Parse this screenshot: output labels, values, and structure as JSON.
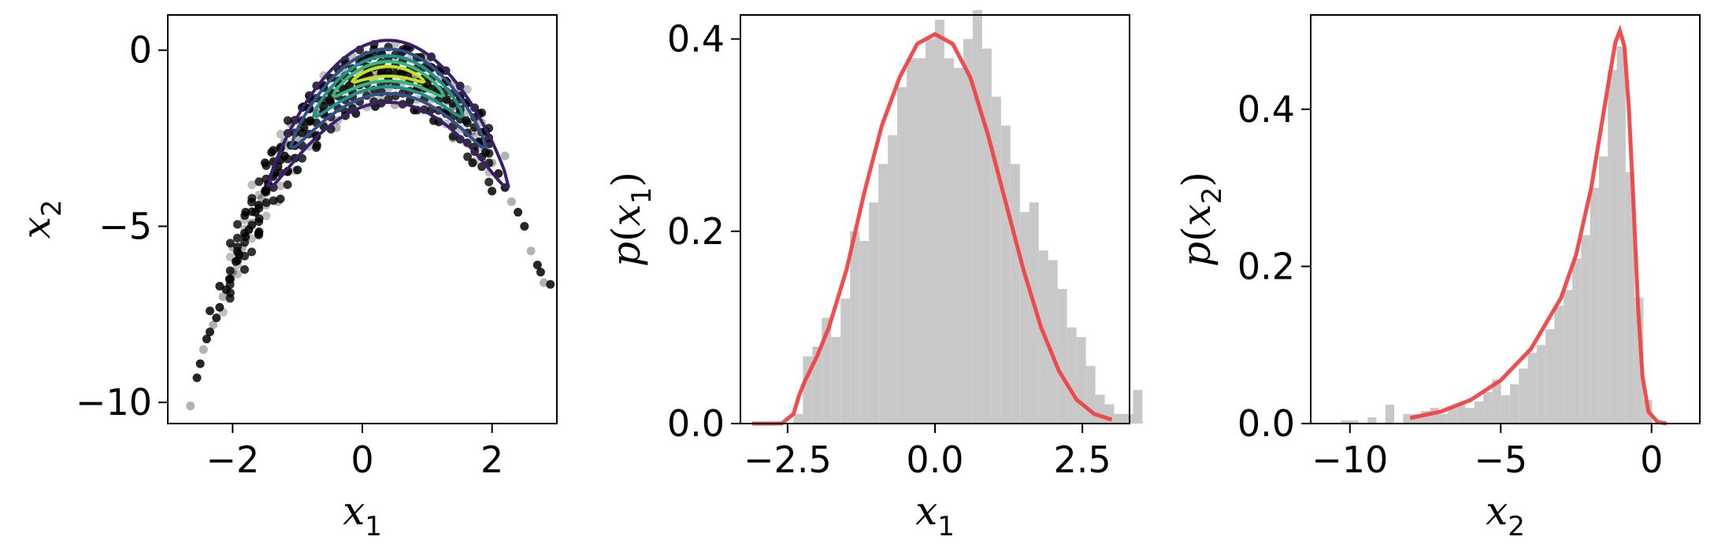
{
  "chart_data": [
    {
      "type": "scatter",
      "xlabel": "x",
      "xlabel_sub": "1",
      "ylabel": "x",
      "ylabel_sub": "2",
      "xlim": [
        -3.0,
        3.0
      ],
      "ylim": [
        -10.6,
        1.0
      ],
      "xticks": [
        -2,
        0,
        2
      ],
      "xtick_labels": [
        "−2",
        "0",
        "2"
      ],
      "yticks": [
        0,
        -5,
        -10
      ],
      "ytick_labels": [
        "0",
        "−5",
        "−10"
      ],
      "point_color": "#000000",
      "contour_colors": [
        "#3b1f6e",
        "#33508c",
        "#21918c",
        "#35b779",
        "#c5e021"
      ],
      "contour_half_widths": [
        1.6,
        1.15,
        0.8,
        0.5,
        0.25
      ],
      "contour_x_extent": [
        1.85,
        1.5,
        1.15,
        0.85,
        0.55
      ],
      "contour_center": [
        0.4,
        -0.6
      ],
      "curve": "x2 = -(x1 - 0.4)^2 * 0.95 - 0.6",
      "points": [
        [
          -2.65,
          -10.1
        ],
        [
          -2.55,
          -9.3
        ],
        [
          -2.5,
          -8.9
        ],
        [
          -2.45,
          -8.5
        ],
        [
          -2.4,
          -8.2
        ],
        [
          -2.35,
          -8.0
        ],
        [
          -2.3,
          -7.8
        ],
        [
          -2.25,
          -7.6
        ],
        [
          -2.2,
          -7.3
        ],
        [
          -2.15,
          -7.0
        ],
        [
          -2.1,
          -6.8
        ],
        [
          -2.05,
          -6.5
        ],
        [
          -2.0,
          -6.3
        ],
        [
          -1.95,
          -6.0
        ],
        [
          -1.9,
          -5.8
        ],
        [
          -1.85,
          -5.6
        ],
        [
          -1.8,
          -5.3
        ],
        [
          -1.75,
          -5.1
        ],
        [
          -1.7,
          -4.9
        ],
        [
          -1.65,
          -4.6
        ],
        [
          -1.6,
          -4.4
        ],
        [
          -1.55,
          -4.2
        ],
        [
          -1.5,
          -4.0
        ],
        [
          -1.45,
          -3.8
        ],
        [
          -1.4,
          -3.6
        ],
        [
          -1.35,
          -3.5
        ],
        [
          -1.3,
          -3.3
        ],
        [
          -1.25,
          -3.1
        ],
        [
          -1.2,
          -3.0
        ],
        [
          -1.1,
          -2.7
        ],
        [
          -1.0,
          -2.5
        ],
        [
          -0.9,
          -2.2
        ],
        [
          -0.8,
          -2.0
        ],
        [
          -0.7,
          -1.8
        ],
        [
          -0.6,
          -1.6
        ],
        [
          -0.5,
          -1.4
        ],
        [
          -0.4,
          -1.2
        ],
        [
          -0.3,
          -1.1
        ],
        [
          -0.2,
          -1.0
        ],
        [
          -0.1,
          -0.9
        ],
        [
          0.0,
          -0.8
        ],
        [
          0.1,
          -0.7
        ],
        [
          0.2,
          -0.65
        ],
        [
          0.3,
          -0.6
        ],
        [
          0.4,
          -0.6
        ],
        [
          0.5,
          -0.62
        ],
        [
          0.6,
          -0.65
        ],
        [
          0.7,
          -0.7
        ],
        [
          0.8,
          -0.78
        ],
        [
          0.9,
          -0.86
        ],
        [
          1.0,
          -0.95
        ],
        [
          1.1,
          -1.1
        ],
        [
          1.2,
          -1.25
        ],
        [
          1.3,
          -1.4
        ],
        [
          1.4,
          -1.6
        ],
        [
          1.5,
          -1.8
        ],
        [
          1.6,
          -2.0
        ],
        [
          1.7,
          -2.3
        ],
        [
          1.8,
          -2.6
        ],
        [
          1.9,
          -2.9
        ],
        [
          2.0,
          -3.2
        ],
        [
          2.1,
          -3.5
        ],
        [
          2.2,
          -3.9
        ],
        [
          2.3,
          -4.3
        ],
        [
          2.4,
          -4.6
        ],
        [
          2.5,
          -5.0
        ],
        [
          2.6,
          -5.7
        ],
        [
          2.7,
          -6.1
        ],
        [
          2.75,
          -6.3
        ],
        [
          2.8,
          -6.6
        ],
        [
          2.9,
          -6.65
        ],
        [
          -1.5,
          -3.2
        ],
        [
          -1.2,
          -2.6
        ],
        [
          -0.9,
          -1.6
        ],
        [
          -0.6,
          -1.0
        ],
        [
          -0.3,
          -0.5
        ],
        [
          0.0,
          -0.3
        ],
        [
          0.3,
          -0.1
        ],
        [
          0.6,
          -0.05
        ],
        [
          0.9,
          -0.2
        ],
        [
          1.2,
          -0.6
        ],
        [
          1.5,
          -1.2
        ],
        [
          1.8,
          -1.8
        ],
        [
          -1.6,
          -5.2
        ],
        [
          -1.3,
          -4.3
        ],
        [
          -1.0,
          -3.4
        ],
        [
          -0.7,
          -2.7
        ],
        [
          -0.4,
          -2.2
        ],
        [
          -0.1,
          -1.8
        ],
        [
          0.2,
          -1.6
        ],
        [
          0.5,
          -1.55
        ],
        [
          0.8,
          -1.7
        ],
        [
          1.1,
          -2.0
        ],
        [
          1.4,
          -2.5
        ],
        [
          1.7,
          -3.2
        ],
        [
          2.0,
          -4.0
        ],
        [
          -0.5,
          -0.8
        ],
        [
          0.1,
          -0.2
        ],
        [
          0.7,
          0.1
        ],
        [
          1.0,
          -0.35
        ],
        [
          1.3,
          -0.9
        ],
        [
          1.6,
          -1.5
        ],
        [
          -1.1,
          -2.1
        ],
        [
          -0.8,
          -1.4
        ],
        [
          -1.4,
          -2.9
        ],
        [
          2.2,
          -3.0
        ],
        [
          1.9,
          -2.3
        ],
        [
          -1.8,
          -4.6
        ],
        [
          -2.0,
          -5.6
        ],
        [
          -2.2,
          -6.7
        ],
        [
          -2.35,
          -7.4
        ]
      ]
    },
    {
      "type": "bar",
      "xlabel": "x",
      "xlabel_sub": "1",
      "ylabel": "p(x",
      "ylabel_sub": "1",
      "ylabel_close": ")",
      "xlim": [
        -3.3,
        3.3
      ],
      "ylim": [
        0.0,
        0.425
      ],
      "xticks": [
        -2.5,
        0.0,
        2.5
      ],
      "xtick_labels": [
        "−2.5",
        "0.0",
        "2.5"
      ],
      "yticks": [
        0.0,
        0.2,
        0.4
      ],
      "ytick_labels": [
        "0.0",
        "0.2",
        "0.4"
      ],
      "hist_color": "#c8c8c8",
      "line_color": "#ef4444",
      "bin_edges_start": -2.4,
      "bin_width": 0.16,
      "hist_values": [
        0.01,
        0.07,
        0.08,
        0.11,
        0.09,
        0.13,
        0.2,
        0.19,
        0.23,
        0.27,
        0.3,
        0.35,
        0.38,
        0.38,
        0.4,
        0.42,
        0.38,
        0.37,
        0.4,
        0.43,
        0.39,
        0.34,
        0.31,
        0.27,
        0.22,
        0.23,
        0.18,
        0.17,
        0.14,
        0.1,
        0.09,
        0.06,
        0.03,
        0.02,
        0.01,
        0.01,
        0.035
      ],
      "pdf_x": [
        -3.1,
        -2.6,
        -2.4,
        -2.3,
        -2.2,
        -2.0,
        -1.8,
        -1.5,
        -1.2,
        -0.9,
        -0.6,
        -0.3,
        0.0,
        0.3,
        0.6,
        0.9,
        1.2,
        1.5,
        1.8,
        2.1,
        2.4,
        2.7,
        3.0
      ],
      "pdf_y": [
        0.0,
        0.0,
        0.01,
        0.03,
        0.045,
        0.07,
        0.1,
        0.16,
        0.24,
        0.31,
        0.36,
        0.395,
        0.405,
        0.395,
        0.36,
        0.3,
        0.23,
        0.16,
        0.1,
        0.055,
        0.025,
        0.01,
        0.004
      ]
    },
    {
      "type": "bar",
      "xlabel": "x",
      "xlabel_sub": "2",
      "ylabel": "p(x",
      "ylabel_sub": "2",
      "ylabel_close": ")",
      "xlim": [
        -11.3,
        1.6
      ],
      "ylim": [
        0.0,
        0.52
      ],
      "xticks": [
        -10,
        -5,
        0
      ],
      "xtick_labels": [
        "−10",
        "−5",
        "0"
      ],
      "yticks": [
        0.0,
        0.2,
        0.4
      ],
      "ytick_labels": [
        "0.0",
        "0.2",
        "0.4"
      ],
      "hist_color": "#c8c8c8",
      "line_color": "#ef4444",
      "bin_edges_start": -10.3,
      "bin_width": 0.295,
      "hist_values": [
        0.004,
        0.004,
        0.0,
        0.008,
        0.0,
        0.024,
        0.0,
        0.012,
        0.012,
        0.016,
        0.02,
        0.012,
        0.02,
        0.024,
        0.02,
        0.028,
        0.04,
        0.056,
        0.036,
        0.05,
        0.07,
        0.09,
        0.1,
        0.12,
        0.15,
        0.17,
        0.21,
        0.24,
        0.3,
        0.34,
        0.45,
        0.48,
        0.32,
        0.16,
        0.03
      ],
      "pdf_x": [
        -8.0,
        -7.0,
        -6.0,
        -5.0,
        -4.0,
        -3.0,
        -2.5,
        -2.0,
        -1.7,
        -1.4,
        -1.2,
        -1.05,
        -0.9,
        -0.75,
        -0.6,
        -0.45,
        -0.3,
        -0.1,
        0.2,
        0.5
      ],
      "pdf_y": [
        0.007,
        0.015,
        0.03,
        0.055,
        0.095,
        0.16,
        0.215,
        0.3,
        0.37,
        0.44,
        0.485,
        0.5,
        0.48,
        0.4,
        0.28,
        0.15,
        0.06,
        0.015,
        0.002,
        0.0
      ]
    }
  ]
}
